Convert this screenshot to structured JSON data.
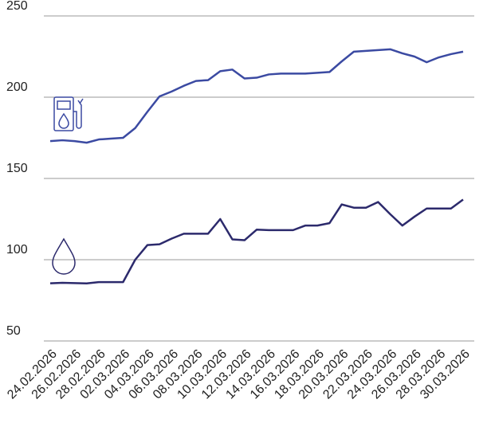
{
  "chart_data": {
    "type": "line",
    "categories": [
      "24.02.2026",
      null,
      "26.02.2026",
      null,
      "28.02.2026",
      null,
      "02.03.2026",
      null,
      "04.03.2026",
      null,
      "06.03.2026",
      null,
      "08.03.2026",
      null,
      "10.03.2026",
      null,
      "12.03.2026",
      null,
      "14.03.2026",
      null,
      "16.03.2026",
      null,
      "18.03.2026",
      null,
      "20.03.2026",
      null,
      "22.03.2026",
      null,
      "24.03.2026",
      null,
      "26.03.2026",
      null,
      "28.03.2026",
      null,
      "30.03.2026"
    ],
    "series": [
      {
        "color": "#3b4aa2",
        "values": [
          173,
          173.5,
          173,
          172,
          174,
          174.5,
          175,
          181,
          191,
          200.5,
          203.5,
          207,
          210,
          210.5,
          216,
          217,
          211.5,
          212,
          214,
          214.5,
          214.5,
          214.5,
          215,
          215.5,
          222,
          228,
          228.5,
          229,
          229.5,
          227,
          225,
          221.5,
          224.5,
          226.5,
          228
        ]
      },
      {
        "color": "#2c2a6c",
        "values": [
          85.5,
          85.8,
          85.6,
          85.4,
          86.2,
          86.2,
          86.2,
          100,
          109,
          109.5,
          113,
          116,
          116,
          116,
          125,
          112.5,
          112,
          118.5,
          118.2,
          118.2,
          118.2,
          121,
          121,
          122.5,
          134,
          132,
          132,
          135.5,
          128,
          121,
          126.5,
          131.5,
          131.5,
          131.5,
          137
        ]
      }
    ],
    "ylim": [
      50,
      250
    ],
    "yticks": [
      50,
      100,
      150,
      200,
      250
    ],
    "grid": true
  }
}
